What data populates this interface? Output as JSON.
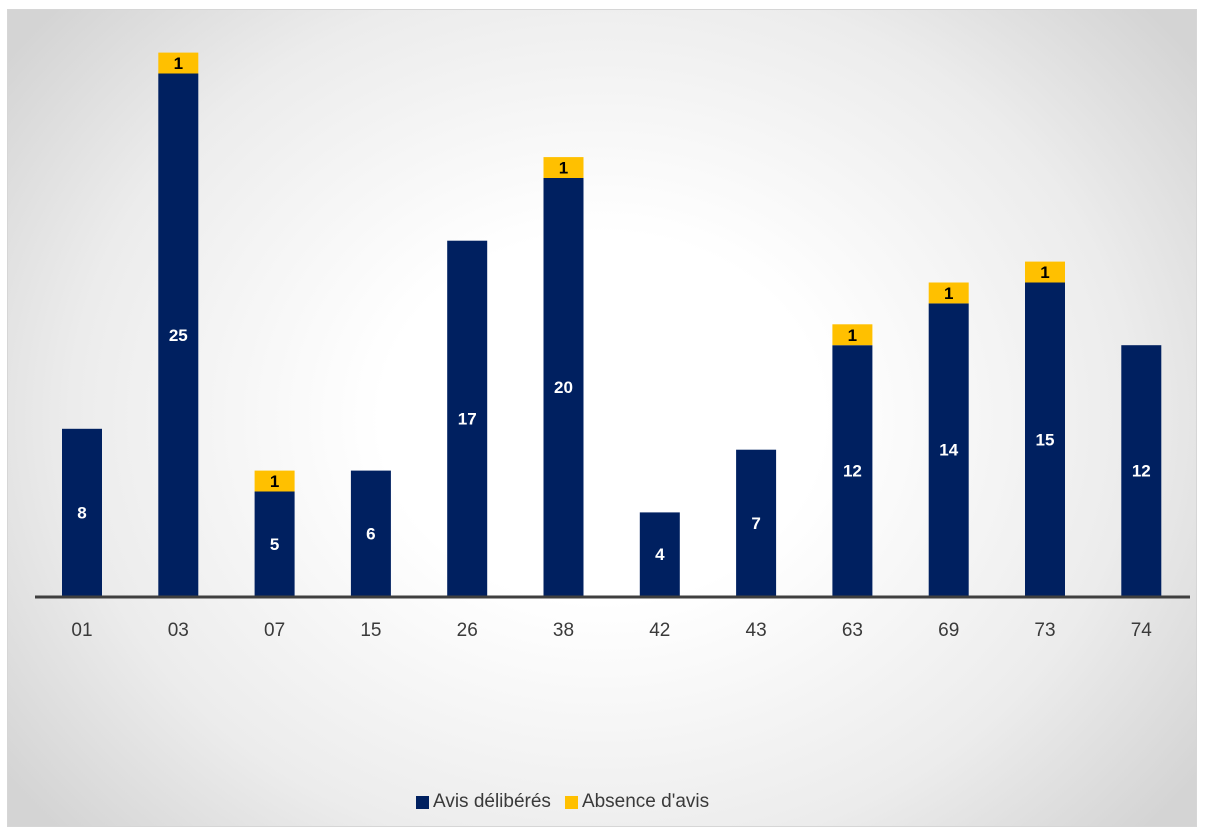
{
  "chart_data": {
    "type": "bar",
    "stacked": true,
    "categories": [
      "01",
      "03",
      "07",
      "15",
      "26",
      "38",
      "42",
      "43",
      "63",
      "69",
      "73",
      "74"
    ],
    "series": [
      {
        "name": "Avis délibérés",
        "color": "#002060",
        "values": [
          8,
          25,
          5,
          6,
          17,
          20,
          4,
          7,
          12,
          14,
          15,
          12
        ]
      },
      {
        "name": "Absence d'avis",
        "color": "#FFC000",
        "values": [
          0,
          1,
          1,
          0,
          0,
          1,
          0,
          0,
          1,
          1,
          1,
          0
        ]
      }
    ],
    "ylim": [
      0,
      26
    ],
    "grid": false,
    "legend": "bottom"
  }
}
